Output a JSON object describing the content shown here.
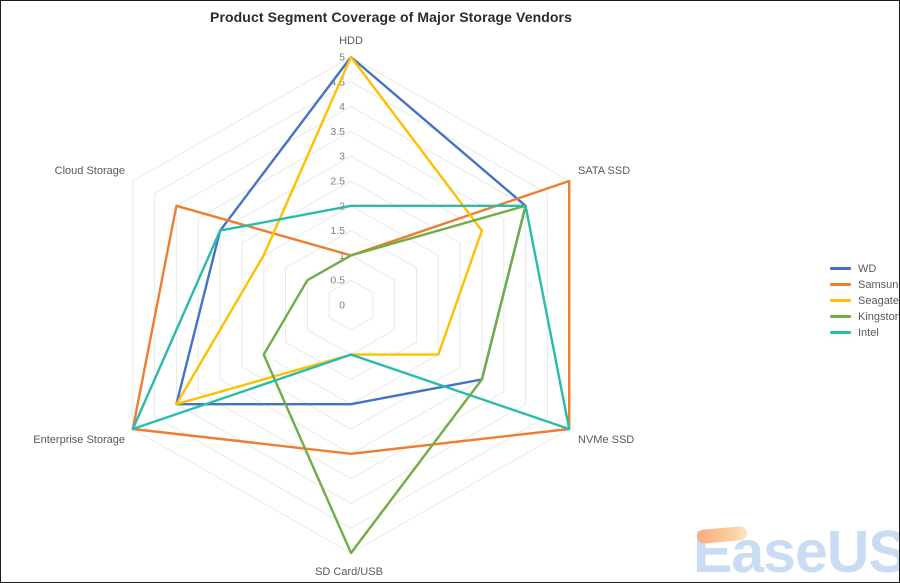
{
  "chart_data": {
    "type": "radar",
    "title": "Product Segment Coverage of Major Storage Vendors",
    "axes": [
      "HDD",
      "SATA SSD",
      "NVMe SSD",
      "SD Card/USB",
      "Enterprise Storage",
      "Cloud Storage"
    ],
    "scale": {
      "min": 0,
      "max": 5,
      "step": 0.5,
      "tick_labels": [
        "0",
        "0.5",
        "1",
        "1.5",
        "2",
        "2.5",
        "3",
        "3.5",
        "4",
        "4.5",
        "5"
      ]
    },
    "series": [
      {
        "name": "WD",
        "color": "#4472C4",
        "values": [
          5,
          4,
          3,
          2,
          4,
          3
        ]
      },
      {
        "name": "Samsung",
        "color": "#ED7D31",
        "values": [
          1,
          5,
          5,
          3,
          5,
          4
        ]
      },
      {
        "name": "Seagate",
        "color": "#FFC000",
        "values": [
          5,
          3,
          2,
          1,
          4,
          2
        ]
      },
      {
        "name": "Kingston",
        "color": "#70AD47",
        "values": [
          1,
          4,
          3,
          5,
          2,
          1
        ]
      },
      {
        "name": "Intel",
        "color": "#2BBBAD",
        "values": [
          2,
          4,
          5,
          1,
          5,
          3
        ]
      }
    ],
    "grid": {
      "shape": "hexagonal-rings",
      "color": "#E9E9E9"
    },
    "legend_position": "right",
    "text_colors": {
      "axis_labels": "#595959",
      "tick_labels": "#808080"
    }
  },
  "watermark": {
    "text": "EaseUS"
  }
}
